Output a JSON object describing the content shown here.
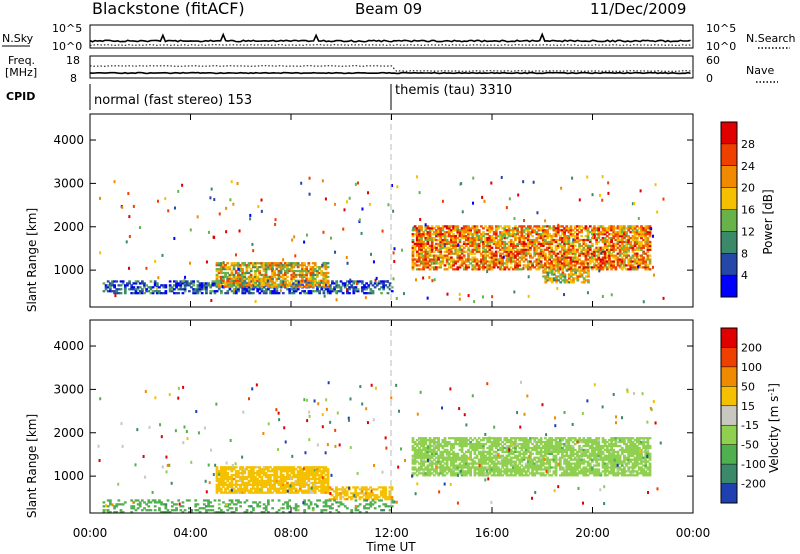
{
  "header": {
    "station": "Blackstone (fitACF)",
    "beam": "Beam 09",
    "date": "11/Dec/2009"
  },
  "top_panels": {
    "noise": {
      "left_label": "N.Sky",
      "left_ticks": [
        "10^5",
        "10^0"
      ],
      "right_ticks": [
        "10^5",
        "10^0"
      ],
      "right_label": "N.Search",
      "right_label_style": "dotted"
    },
    "freq": {
      "left_label_1": "Freq.",
      "left_label_2": "[MHz]",
      "left_ticks": [
        "18",
        "8"
      ],
      "right_ticks": [
        "60",
        "0"
      ],
      "right_label": "Nave",
      "right_label_style": "dotted"
    },
    "cpid": {
      "label": "CPID",
      "segments": [
        "normal (fast stereo) 153",
        "themis (tau) 3310"
      ]
    }
  },
  "chart_data": [
    {
      "type": "heatmap",
      "name": "power",
      "ylabel": "Slant Range [km]",
      "yticks": [
        1000,
        2000,
        3000,
        4000
      ],
      "ylim": [
        150,
        4600
      ],
      "xlim_hours": [
        0,
        24
      ],
      "colorbar": {
        "label": "Power [dB]",
        "ticks": [
          "4",
          "8",
          "12",
          "16",
          "20",
          "24",
          "28"
        ],
        "colors": [
          "#0000ff",
          "#2447a8",
          "#3a8a6a",
          "#67b34a",
          "#f5c000",
          "#f08a00",
          "#f04000",
          "#e00000"
        ]
      },
      "echo_regions": [
        {
          "t0": 0.5,
          "t1": 12.0,
          "r0": 450,
          "r1": 750,
          "level": 1,
          "density": 0.55
        },
        {
          "t0": 5.0,
          "t1": 9.5,
          "r0": 600,
          "r1": 1150,
          "level": 4,
          "density": 0.75
        },
        {
          "t0": 12.8,
          "t1": 22.3,
          "r0": 1000,
          "r1": 2000,
          "level": 5,
          "density": 0.7
        },
        {
          "t0": 18.0,
          "t1": 19.8,
          "r0": 700,
          "r1": 1000,
          "level": 4,
          "density": 0.6
        }
      ]
    },
    {
      "type": "heatmap",
      "name": "velocity",
      "ylabel": "Slant Range [km]",
      "yticks": [
        1000,
        2000,
        3000,
        4000
      ],
      "ylim": [
        150,
        4600
      ],
      "xlabel": "Time UT",
      "xticks": [
        "00:00",
        "04:00",
        "08:00",
        "12:00",
        "16:00",
        "20:00",
        "00:00"
      ],
      "xlim_hours": [
        0,
        24
      ],
      "colorbar": {
        "label": "Velocity [m s^-1]",
        "ticks": [
          "200",
          "100",
          "50",
          "15",
          "-15",
          "-50",
          "-100",
          "-200"
        ],
        "colors": [
          "#2040b0",
          "#3a8a6a",
          "#50b050",
          "#90d050",
          "#c8c8c0",
          "#f5c000",
          "#f08a00",
          "#f04000",
          "#e00000"
        ]
      },
      "echo_regions": [
        {
          "t0": 5.0,
          "t1": 9.5,
          "r0": 600,
          "r1": 1200,
          "category": "-50",
          "density": 0.8
        },
        {
          "t0": 9.5,
          "t1": 12.0,
          "r0": 450,
          "r1": 750,
          "category": "-50",
          "density": 0.6
        },
        {
          "t0": 12.8,
          "t1": 22.3,
          "r0": 1000,
          "r1": 1900,
          "category": "15",
          "density": 0.75
        },
        {
          "t0": 0.5,
          "t1": 12.0,
          "r0": 150,
          "r1": 450,
          "category": "50",
          "density": 0.3
        }
      ]
    }
  ]
}
